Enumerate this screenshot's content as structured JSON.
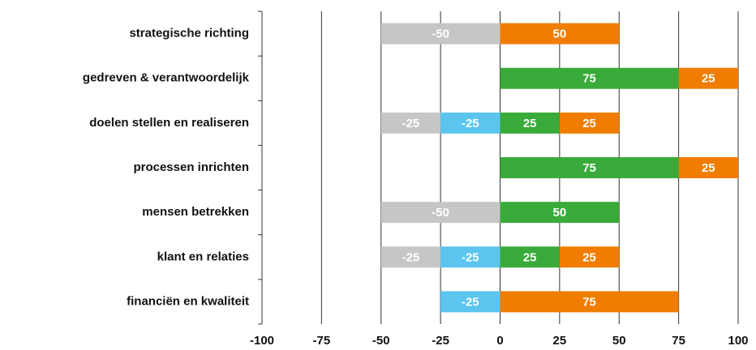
{
  "chart_data": {
    "type": "bar",
    "orientation": "horizontal",
    "stacked": "diverging",
    "categories": [
      "strategische richting",
      "gedreven & verantwoordelijk",
      "doelen stellen en realiseren",
      "processen inrichten",
      "mensen betrekken",
      "klant en relaties",
      "financiën en kwaliteit"
    ],
    "series": [
      {
        "color": "#c6c6c6",
        "values": [
          -50,
          null,
          -25,
          null,
          -50,
          -25,
          null
        ]
      },
      {
        "color": "#5bc5ef",
        "values": [
          null,
          null,
          -25,
          null,
          null,
          -25,
          -25
        ]
      },
      {
        "color": "#3aaa3a",
        "values": [
          null,
          75,
          25,
          75,
          50,
          25,
          null
        ]
      },
      {
        "color": "#f07d00",
        "values": [
          50,
          25,
          25,
          25,
          null,
          25,
          75
        ]
      }
    ],
    "xlim": [
      -100,
      100
    ],
    "xticks": [
      -100,
      -75,
      -50,
      -25,
      0,
      25,
      50,
      75,
      100
    ],
    "grid": true
  }
}
